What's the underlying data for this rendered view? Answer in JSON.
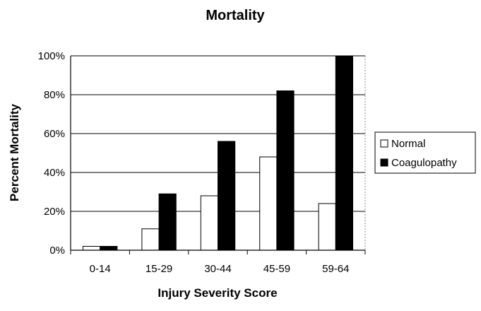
{
  "chart_data": {
    "type": "bar",
    "title": "Mortality",
    "xlabel": "Injury Severity Score",
    "ylabel": "Percent Mortality",
    "categories": [
      "0-14",
      "15-29",
      "30-44",
      "45-59",
      "59-64"
    ],
    "series": [
      {
        "name": "Normal",
        "values": [
          2,
          11,
          28,
          48,
          24
        ],
        "color": "#ffffff"
      },
      {
        "name": "Coagulopathy",
        "values": [
          2,
          29,
          56,
          82,
          100
        ],
        "color": "#000000"
      }
    ],
    "ylim": [
      0,
      100
    ],
    "yticks": [
      0,
      20,
      40,
      60,
      80,
      100
    ],
    "ytick_labels": [
      "0%",
      "20%",
      "40%",
      "60%",
      "80%",
      "100%"
    ],
    "grid": "horizontal",
    "legend_position": "right"
  }
}
